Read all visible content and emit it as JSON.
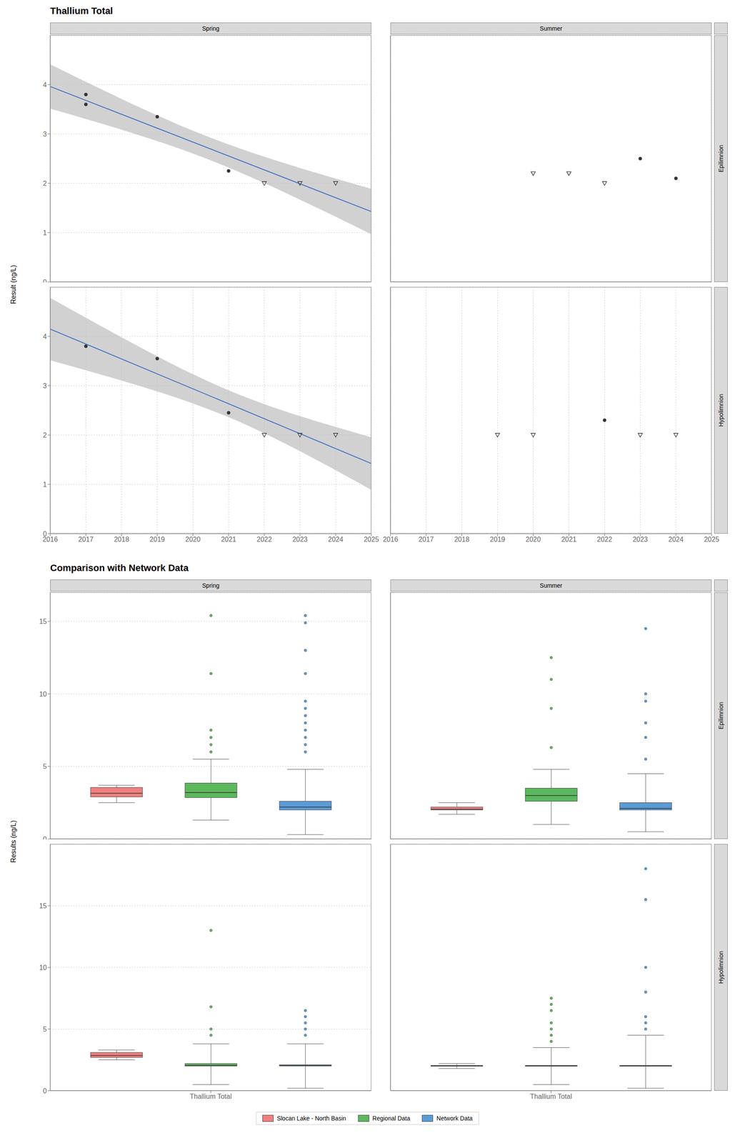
{
  "chart_data": [
    {
      "type": "scatter",
      "title": "Thallium Total",
      "subtitle": "Spring",
      "ylabel": "Result (ng/L)",
      "xlim": [
        2016,
        2025
      ],
      "xticks": [
        2016,
        2017,
        2018,
        2019,
        2020,
        2021,
        2022,
        2023,
        2024,
        2025
      ],
      "ylim": [
        0,
        5
      ],
      "yticks": [
        0,
        1,
        2,
        3,
        4
      ],
      "grid": true,
      "tick_labels": "y",
      "series": [
        {
          "type": "area",
          "color": "#BEBEBE",
          "x": [
            2016,
            2017,
            2018,
            2019,
            2020,
            2021,
            2022,
            2023,
            2024,
            2025
          ],
          "lower": [
            3.512,
            3.303,
            3.087,
            2.856,
            2.604,
            2.32,
            2.005,
            1.669,
            1.321,
            0.966
          ],
          "upper": [
            4.412,
            4.057,
            3.71,
            3.377,
            3.066,
            2.787,
            2.538,
            2.31,
            2.095,
            1.887
          ]
        },
        {
          "type": "line",
          "color": "#4472C4",
          "x": [
            2016,
            2025
          ],
          "values": [
            3.962,
            1.426
          ]
        },
        {
          "type": "scatter",
          "color": "#333333",
          "marker": "circle",
          "x": [
            2017,
            2017,
            2019,
            2021
          ],
          "values": [
            3.6,
            3.8,
            3.35,
            2.25
          ]
        },
        {
          "type": "scatter",
          "color": "#333333",
          "marker": "triangle_down_open",
          "x": [
            2022,
            2023,
            2024
          ],
          "values": [
            2.0,
            2.0,
            2.0
          ]
        }
      ]
    },
    {
      "type": "scatter",
      "subtitle": "Summer",
      "annotations": [
        "Epilimnion"
      ],
      "xlim": [
        2016,
        2025
      ],
      "xticks": [
        2016,
        2017,
        2018,
        2019,
        2020,
        2021,
        2022,
        2023,
        2024,
        2025
      ],
      "ylim": [
        0,
        5
      ],
      "yticks": [
        0,
        1,
        2,
        3,
        4
      ],
      "grid": true,
      "tick_labels": false,
      "series": [
        {
          "type": "scatter",
          "color": "#333333",
          "marker": "circle",
          "x": [
            2023,
            2024
          ],
          "values": [
            2.5,
            2.1
          ]
        },
        {
          "type": "scatter",
          "color": "#333333",
          "marker": "triangle_down_open",
          "x": [
            2020,
            2021,
            2022
          ],
          "values": [
            2.2,
            2.2,
            2.0
          ]
        }
      ]
    },
    {
      "type": "scatter",
      "xlim": [
        2016,
        2025
      ],
      "xticks": [
        2016,
        2017,
        2018,
        2019,
        2020,
        2021,
        2022,
        2023,
        2024,
        2025
      ],
      "ylim": [
        0,
        5
      ],
      "yticks": [
        0,
        1,
        2,
        3,
        4
      ],
      "grid": true,
      "series": [
        {
          "type": "area",
          "color": "#BEBEBE",
          "x": [
            2016,
            2017,
            2018,
            2019,
            2020,
            2021,
            2022,
            2023,
            2024,
            2025
          ],
          "lower": [
            3.515,
            3.313,
            3.104,
            2.884,
            2.641,
            2.361,
            2.035,
            1.672,
            1.287,
            0.889
          ],
          "upper": [
            4.781,
            4.377,
            3.98,
            3.595,
            3.232,
            2.906,
            2.626,
            2.383,
            2.163,
            1.954
          ]
        },
        {
          "type": "line",
          "color": "#4472C4",
          "x": [
            2016,
            2025
          ],
          "values": [
            4.148,
            1.422
          ]
        },
        {
          "type": "scatter",
          "color": "#333333",
          "marker": "circle",
          "x": [
            2017,
            2019,
            2021
          ],
          "values": [
            3.8,
            3.55,
            2.45
          ]
        },
        {
          "type": "scatter",
          "color": "#333333",
          "marker": "triangle_down_open",
          "x": [
            2022,
            2023,
            2024
          ],
          "values": [
            2.0,
            2.0,
            2.0
          ]
        }
      ]
    },
    {
      "type": "scatter",
      "annotations": [
        "Hypolimnion"
      ],
      "xlim": [
        2016,
        2025
      ],
      "xticks": [
        2016,
        2017,
        2018,
        2019,
        2020,
        2021,
        2022,
        2023,
        2024,
        2025
      ],
      "ylim": [
        0,
        5
      ],
      "yticks": [
        0,
        1,
        2,
        3,
        4
      ],
      "grid": true,
      "tick_labels": "x",
      "series": [
        {
          "type": "scatter",
          "color": "#333333",
          "marker": "circle",
          "x": [
            2022
          ],
          "values": [
            2.3
          ]
        },
        {
          "type": "scatter",
          "color": "#333333",
          "marker": "triangle_down_open",
          "x": [
            2019,
            2020,
            2023,
            2024
          ],
          "values": [
            2.0,
            2.0,
            2.0,
            2.0
          ]
        }
      ]
    },
    {
      "type": "box",
      "title": "Comparison with Network Data",
      "subtitle": "Spring",
      "ylabel": "Results (ng/L)",
      "categories": [
        null
      ],
      "ylim": [
        0,
        17
      ],
      "yticks": [
        0,
        5,
        10,
        15
      ],
      "grid": "y",
      "tick_labels": "y",
      "series": [
        {
          "name": "Slocan Lake - North Basin",
          "color": "#F08080",
          "q1": [
            2.9
          ],
          "median": [
            3.15
          ],
          "q3": [
            3.55
          ],
          "whislo": [
            2.5
          ],
          "whishi": [
            3.7
          ],
          "fliers": [
            []
          ]
        },
        {
          "name": "Regional Data",
          "color": "#5CB85C",
          "q1": [
            2.85
          ],
          "median": [
            3.2
          ],
          "q3": [
            3.85
          ],
          "whislo": [
            1.3
          ],
          "whishi": [
            5.5
          ],
          "fliers": [
            [
              6.0,
              6.5,
              7.0,
              7.5,
              11.4,
              15.4
            ]
          ]
        },
        {
          "name": "Network Data",
          "color": "#5B9BD5",
          "q1": [
            2.0
          ],
          "median": [
            2.2
          ],
          "q3": [
            2.6
          ],
          "whislo": [
            0.3
          ],
          "whishi": [
            4.8
          ],
          "fliers": [
            [
              6.0,
              6.5,
              7.0,
              7.5,
              8.0,
              8.5,
              9.0,
              9.5,
              11.4,
              13.0,
              14.9,
              15.4
            ]
          ]
        }
      ]
    },
    {
      "type": "box",
      "subtitle": "Summer",
      "annotations": [
        "Epilimnion"
      ],
      "categories": [
        null
      ],
      "ylim": [
        0,
        17
      ],
      "yticks": [
        0,
        5,
        10,
        15
      ],
      "grid": "y",
      "tick_labels": false,
      "series": [
        {
          "name": "Slocan Lake - North Basin",
          "color": "#F08080",
          "q1": [
            2.0
          ],
          "median": [
            2.05
          ],
          "q3": [
            2.2
          ],
          "whislo": [
            1.7
          ],
          "whishi": [
            2.5
          ],
          "fliers": [
            []
          ]
        },
        {
          "name": "Regional Data",
          "color": "#5CB85C",
          "q1": [
            2.6
          ],
          "median": [
            3.0
          ],
          "q3": [
            3.5
          ],
          "whislo": [
            1.0
          ],
          "whishi": [
            4.8
          ],
          "fliers": [
            [
              6.3,
              9.0,
              11.0,
              12.5
            ]
          ]
        },
        {
          "name": "Network Data",
          "color": "#5B9BD5",
          "q1": [
            2.0
          ],
          "median": [
            2.1
          ],
          "q3": [
            2.5
          ],
          "whislo": [
            0.5
          ],
          "whishi": [
            4.5
          ],
          "fliers": [
            [
              5.5,
              7.0,
              8.0,
              9.5,
              10.0,
              14.5
            ]
          ]
        }
      ]
    },
    {
      "type": "box",
      "categories": [
        "Thallium Total"
      ],
      "ylim": [
        0,
        20
      ],
      "yticks": [
        0,
        5,
        10,
        15
      ],
      "grid": "y",
      "series": [
        {
          "name": "Slocan Lake - North Basin",
          "color": "#F08080",
          "q1": [
            2.7
          ],
          "median": [
            2.85
          ],
          "q3": [
            3.1
          ],
          "whislo": [
            2.5
          ],
          "whishi": [
            3.3
          ],
          "fliers": [
            []
          ]
        },
        {
          "name": "Regional Data",
          "color": "#5CB85C",
          "q1": [
            2.0
          ],
          "median": [
            2.05
          ],
          "q3": [
            2.2
          ],
          "whislo": [
            0.5
          ],
          "whishi": [
            3.8
          ],
          "fliers": [
            [
              4.5,
              5.0,
              6.8,
              13.0
            ]
          ]
        },
        {
          "name": "Network Data",
          "color": "#5B9BD5",
          "q1": [
            2.0
          ],
          "median": [
            2.05
          ],
          "q3": [
            2.1
          ],
          "whislo": [
            0.2
          ],
          "whishi": [
            3.8
          ],
          "fliers": [
            [
              4.5,
              5.0,
              5.5,
              6.0,
              6.5
            ]
          ]
        }
      ]
    },
    {
      "type": "box",
      "annotations": [
        "Hypolimnion"
      ],
      "legend": "bottom",
      "categories": [
        "Thallium Total"
      ],
      "ylim": [
        0,
        20
      ],
      "yticks": [
        0,
        5,
        10,
        15
      ],
      "grid": "y",
      "tick_labels": "x",
      "series": [
        {
          "name": "Slocan Lake - North Basin",
          "color": "#F08080",
          "q1": [
            2.0
          ],
          "median": [
            2.0
          ],
          "q3": [
            2.05
          ],
          "whislo": [
            1.8
          ],
          "whishi": [
            2.2
          ],
          "fliers": [
            []
          ]
        },
        {
          "name": "Regional Data",
          "color": "#5CB85C",
          "q1": [
            2.0
          ],
          "median": [
            2.0
          ],
          "q3": [
            2.05
          ],
          "whislo": [
            0.5
          ],
          "whishi": [
            3.5
          ],
          "fliers": [
            [
              4.0,
              4.5,
              5.0,
              5.5,
              6.5,
              7.0,
              7.5
            ]
          ]
        },
        {
          "name": "Network Data",
          "color": "#5B9BD5",
          "q1": [
            2.0
          ],
          "median": [
            2.0
          ],
          "q3": [
            2.05
          ],
          "whislo": [
            0.2
          ],
          "whishi": [
            4.5
          ],
          "fliers": [
            [
              5.0,
              5.5,
              6.0,
              8.0,
              10.0,
              15.5,
              18.0
            ]
          ]
        }
      ]
    }
  ]
}
